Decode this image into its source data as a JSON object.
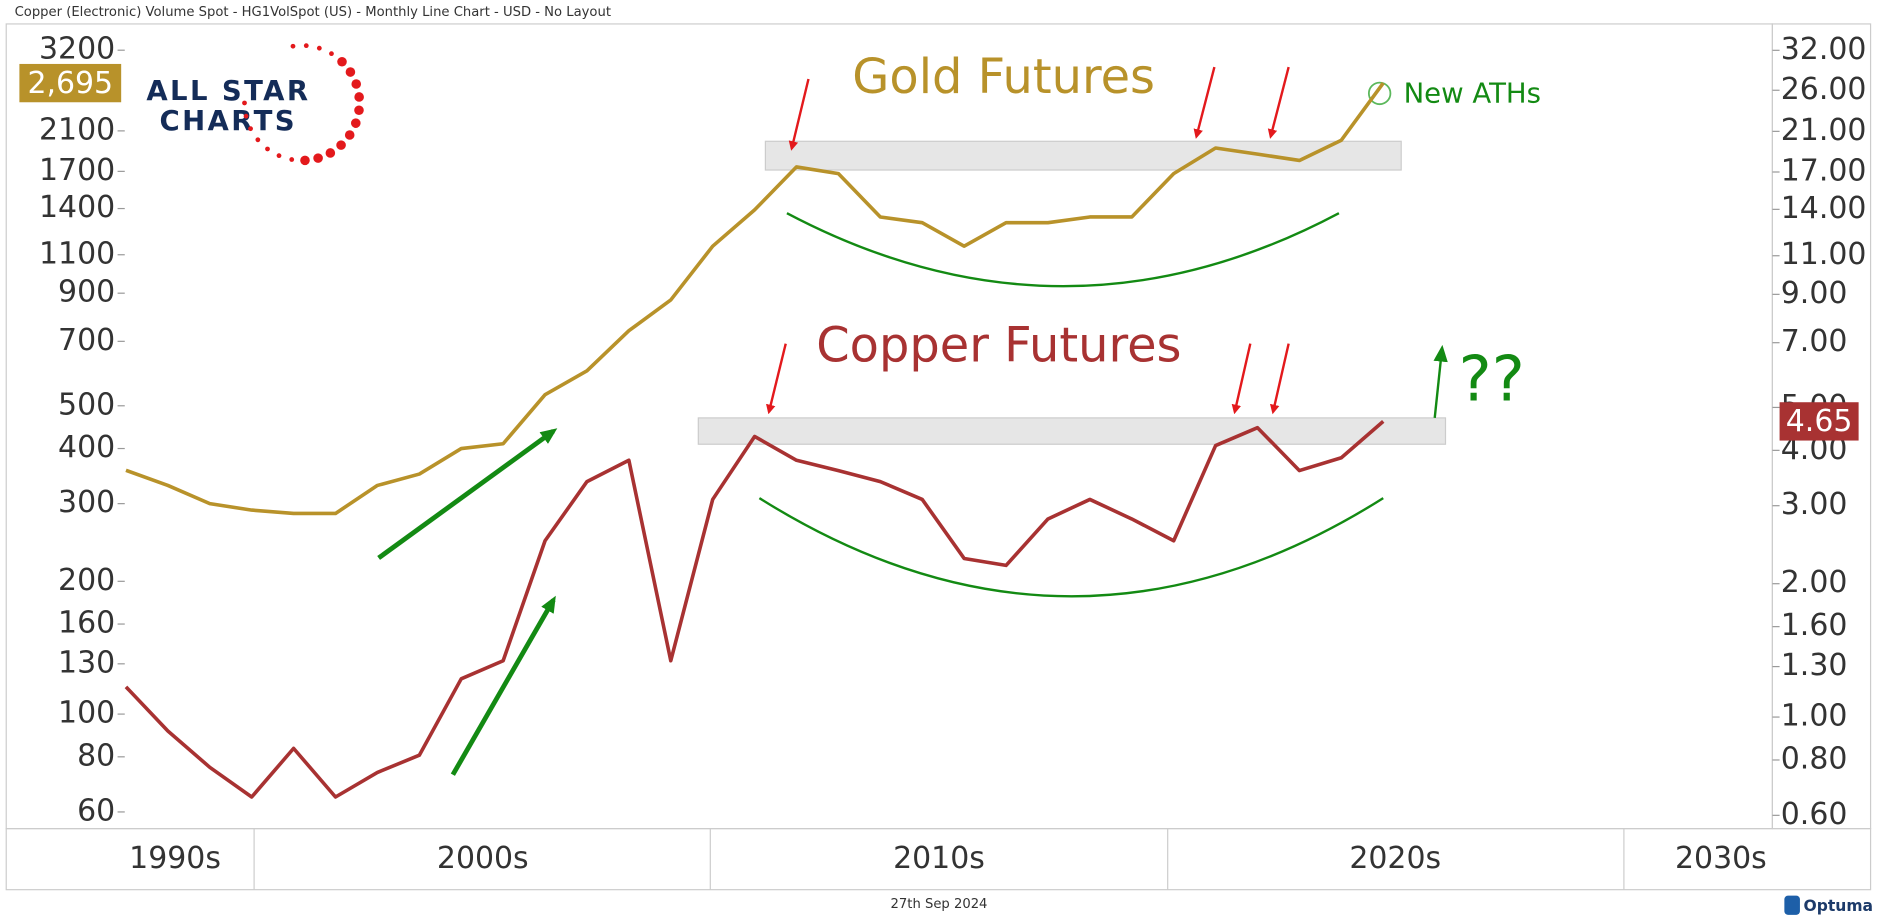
{
  "header": "Copper (Electronic) Volume Spot - HG1VolSpot (US) - Monthly Line Chart - USD - No Layout",
  "footer_date": "27th Sep 2024",
  "logo": {
    "line1": "ALL STAR",
    "line2": "CHARTS"
  },
  "brand": "Optuma",
  "chart_data": {
    "type": "line",
    "log_scale": true,
    "x_labels": [
      "1990s",
      "2000s",
      "2010s",
      "2020s",
      "2030s"
    ],
    "annotations": {
      "ath": "New ATHs",
      "question": "??"
    },
    "ylim": [
      55,
      3670
    ],
    "yticks": [
      3200,
      2100,
      1700,
      1400,
      1100,
      900,
      700,
      500,
      400,
      300,
      200,
      160,
      130,
      100,
      80,
      60
    ],
    "y2lim": [
      0.56,
      36.7
    ],
    "y2ticks": [
      {
        "value": 32,
        "label": "32.00"
      },
      {
        "value": 26,
        "label": "26.00"
      },
      {
        "value": 21,
        "label": "21.00"
      },
      {
        "value": 17,
        "label": "17.00"
      },
      {
        "value": 14,
        "label": "14.00"
      },
      {
        "value": 11,
        "label": "11.00"
      },
      {
        "value": 9,
        "label": "9.00"
      },
      {
        "value": 7,
        "label": "7.00"
      },
      {
        "value": 5,
        "label": "5.00"
      },
      {
        "value": 4,
        "label": "4.00"
      },
      {
        "value": 3,
        "label": "3.00"
      },
      {
        "value": 2,
        "label": "2.00"
      },
      {
        "value": 1.6,
        "label": "1.60"
      },
      {
        "value": 1.3,
        "label": "1.30"
      },
      {
        "value": 1,
        "label": "1.00"
      },
      {
        "value": 0.8,
        "label": "0.80"
      },
      {
        "value": 0.6,
        "label": "0.60"
      }
    ],
    "series": [
      {
        "name": "Gold Futures",
        "color": "#b8922a",
        "values": [
          357,
          330,
          300,
          290,
          285,
          285,
          330,
          350,
          400,
          410,
          530,
          600,
          740,
          869,
          1150,
          1390,
          1740,
          1680,
          1340,
          1300,
          1150,
          1300,
          1300,
          1340,
          1340,
          1680,
          1920,
          1860,
          1800,
          2000,
          2695
        ],
        "value_labels": [
          null,
          null,
          null,
          null,
          null,
          null,
          null,
          null,
          null,
          null,
          null,
          null,
          null,
          null,
          null,
          null,
          null,
          null,
          null,
          null,
          null,
          null,
          null,
          null,
          null,
          null,
          null,
          null,
          null,
          null,
          "2,695"
        ]
      },
      {
        "name": "Copper Futures",
        "color": "#a83232",
        "axis": "y2",
        "values": [
          1.17,
          0.93,
          0.77,
          0.66,
          0.85,
          0.66,
          0.75,
          0.82,
          1.22,
          1.34,
          2.5,
          3.4,
          3.8,
          1.34,
          3.1,
          4.3,
          3.8,
          3.6,
          3.4,
          3.1,
          2.28,
          2.2,
          2.8,
          3.1,
          2.8,
          2.5,
          4.1,
          4.5,
          3.6,
          3.85,
          4.65
        ],
        "value_labels": [
          null,
          null,
          null,
          null,
          null,
          null,
          null,
          null,
          null,
          null,
          null,
          null,
          null,
          null,
          null,
          null,
          null,
          null,
          null,
          null,
          null,
          null,
          null,
          null,
          null,
          null,
          null,
          null,
          null,
          null,
          "4.65"
        ]
      }
    ]
  }
}
